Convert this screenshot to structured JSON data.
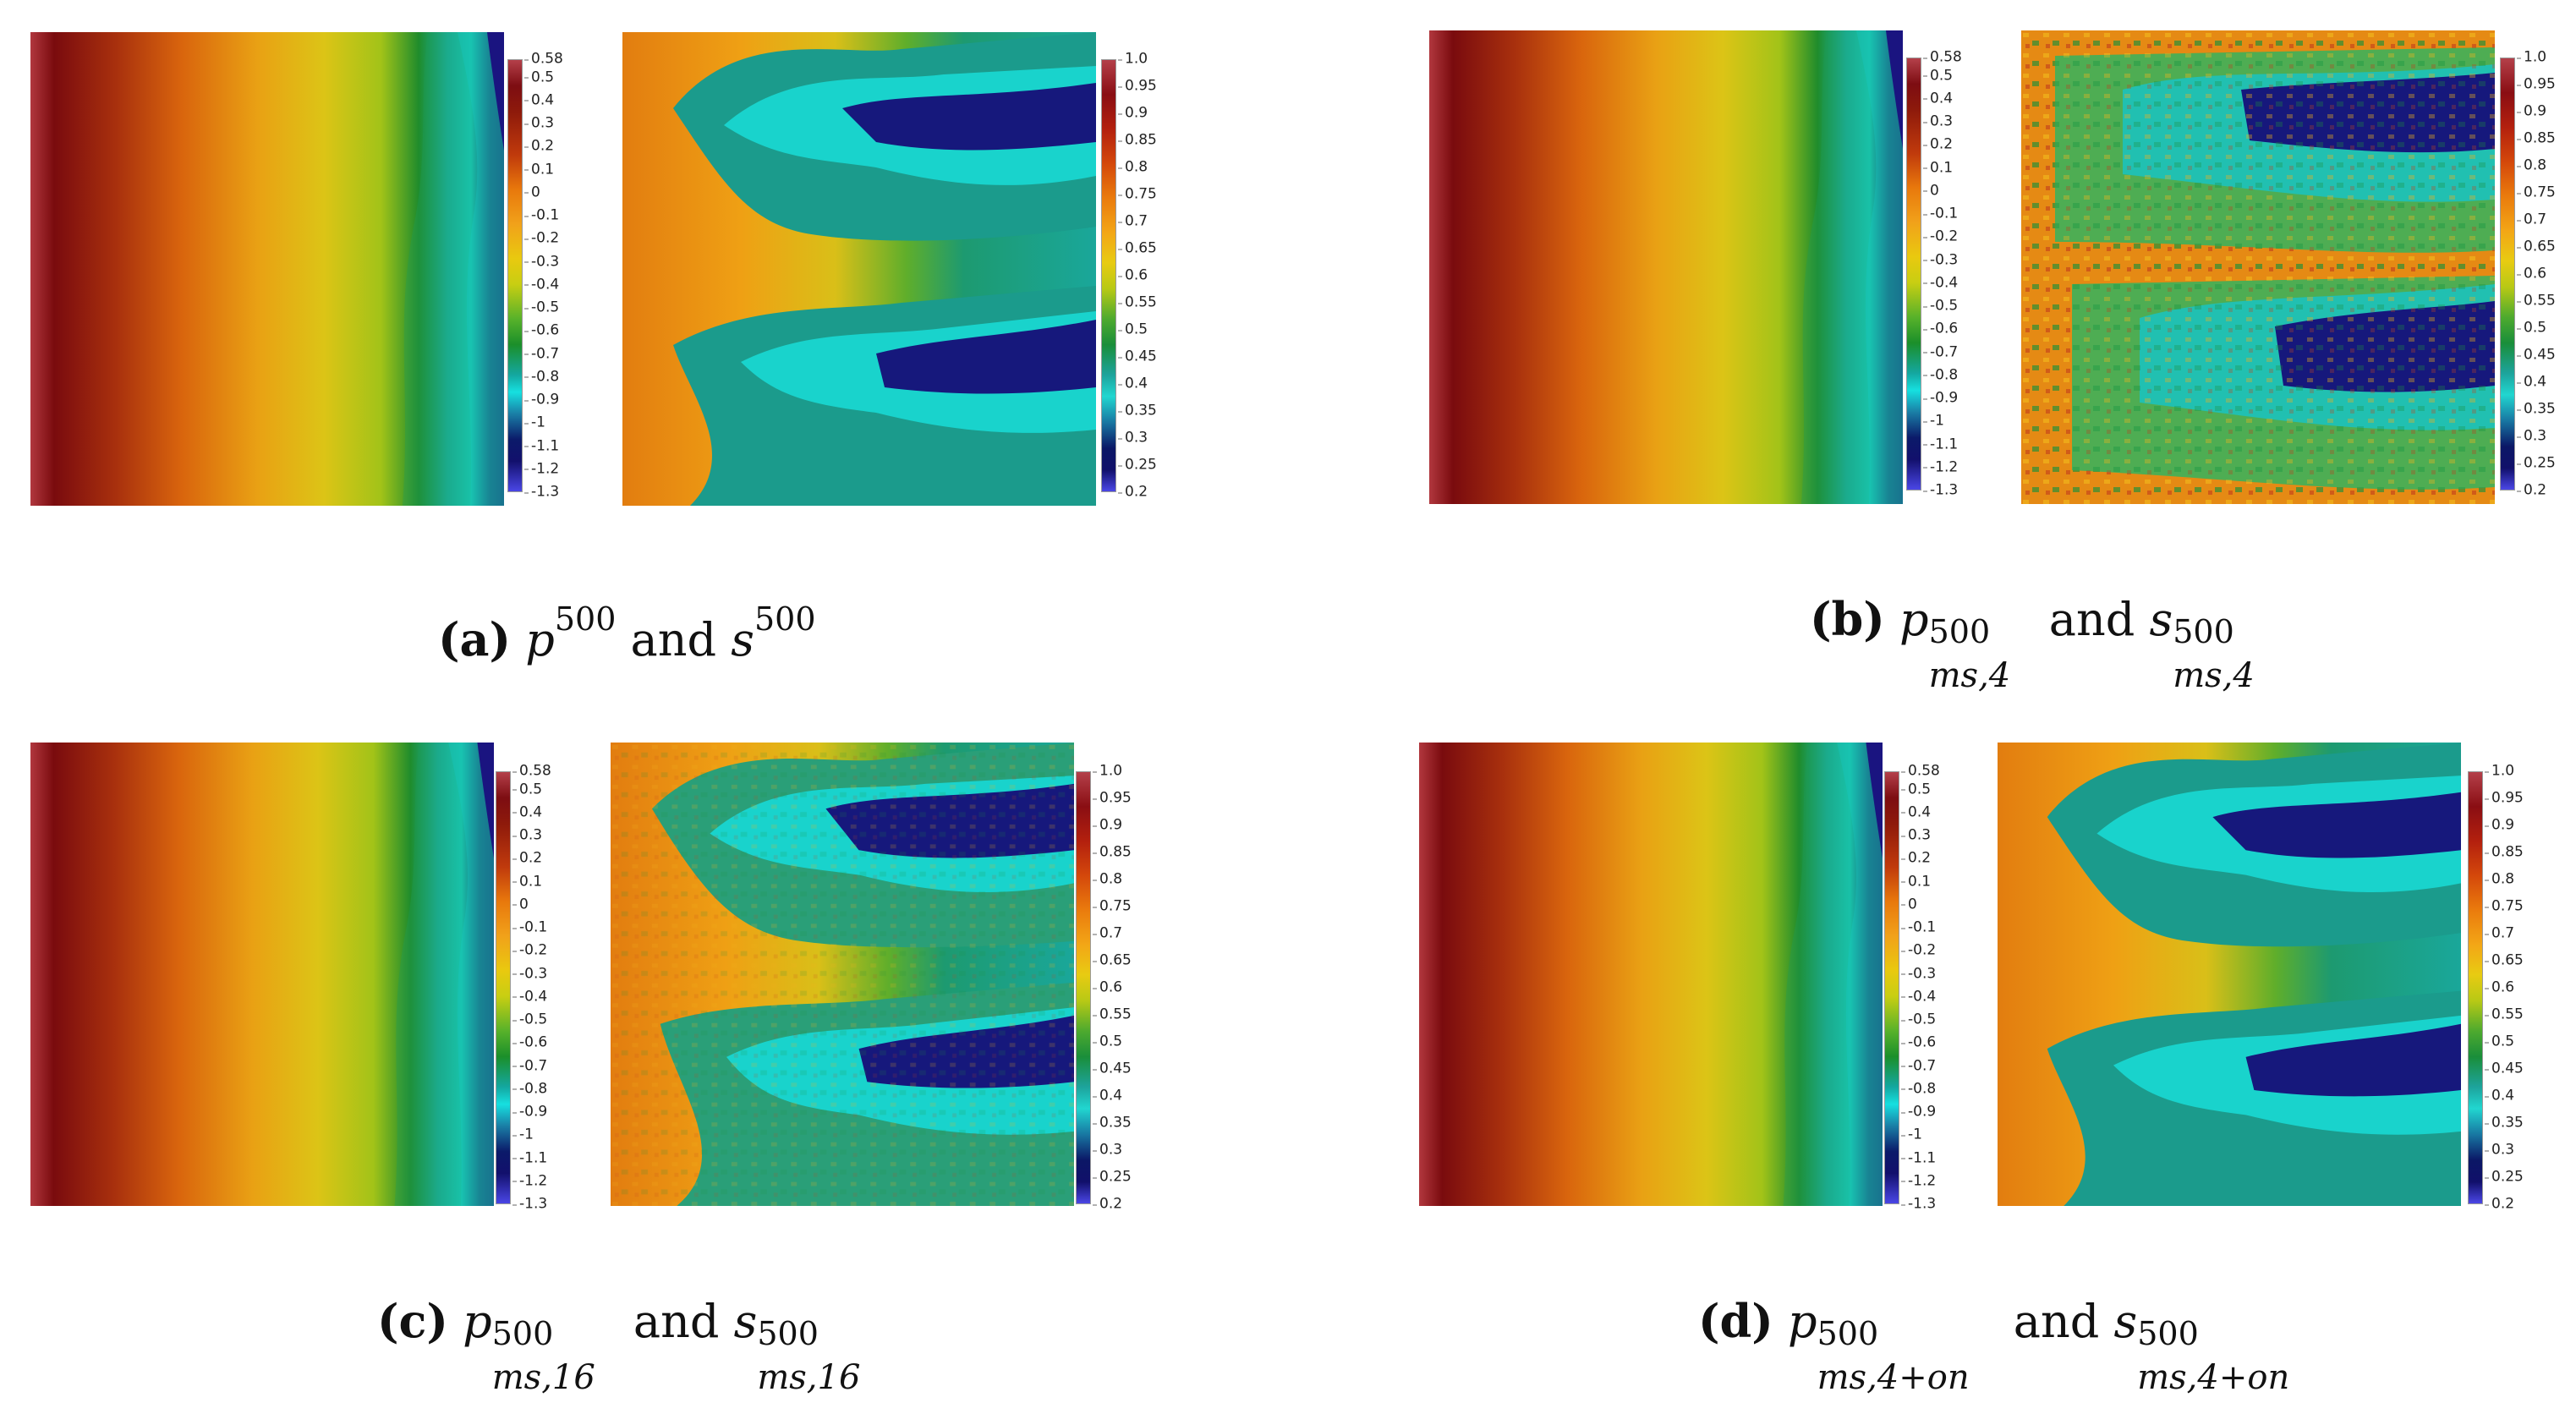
{
  "pressure_colorbar": {
    "ticks": [
      "0.58",
      "0.5",
      "0.4",
      "0.3",
      "0.2",
      "0.1",
      "0",
      "-0.1",
      "-0.2",
      "-0.3",
      "-0.4",
      "-0.5",
      "-0.6",
      "-0.7",
      "-0.8",
      "-0.9",
      "-1",
      "-1.1",
      "-1.2",
      "-1.3"
    ],
    "range": [
      -1.3,
      0.58
    ]
  },
  "saturation_colorbar": {
    "ticks": [
      "1.0",
      "0.95",
      "0.9",
      "0.85",
      "0.8",
      "0.75",
      "0.7",
      "0.65",
      "0.6",
      "0.55",
      "0.5",
      "0.45",
      "0.4",
      "0.35",
      "0.3",
      "0.25",
      "0.2"
    ],
    "range": [
      0.2,
      1.0
    ]
  },
  "panels": [
    {
      "id": "a",
      "label": "(a)",
      "p_symbol": "p",
      "p_superscript": "500",
      "p_subscript": "",
      "and": "and",
      "s_symbol": "s",
      "s_superscript": "500",
      "s_subscript": ""
    },
    {
      "id": "b",
      "label": "(b)",
      "p_symbol": "p",
      "p_superscript": "500",
      "p_subscript": "ms,4",
      "and": "and",
      "s_symbol": "s",
      "s_superscript": "500",
      "s_subscript": "ms,4"
    },
    {
      "id": "c",
      "label": "(c)",
      "p_symbol": "p",
      "p_superscript": "500",
      "p_subscript": "ms,16",
      "and": "and",
      "s_symbol": "s",
      "s_superscript": "500",
      "s_subscript": "ms,16"
    },
    {
      "id": "d",
      "label": "(d)",
      "p_symbol": "p",
      "p_superscript": "500",
      "p_subscript": "ms,4+on",
      "and": "and",
      "s_symbol": "s",
      "s_superscript": "500",
      "s_subscript": "ms,4+on"
    }
  ]
}
